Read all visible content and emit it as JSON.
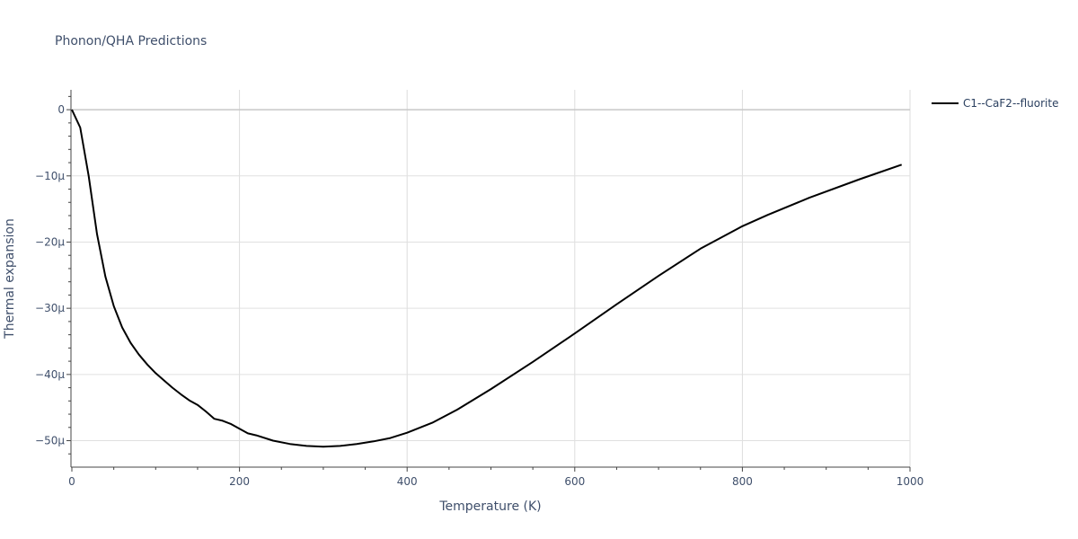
{
  "chart_data": {
    "type": "line",
    "title": "Phonon/QHA Predictions",
    "xlabel": "Temperature (K)",
    "ylabel": "Thermal expansion",
    "xlim": [
      0,
      1000
    ],
    "ylim": [
      -54,
      3
    ],
    "x_ticks": [
      0,
      200,
      400,
      600,
      800,
      1000
    ],
    "x_tick_labels": [
      "0",
      "200",
      "400",
      "600",
      "800",
      "1000"
    ],
    "y_ticks": [
      0,
      -10,
      -20,
      -30,
      -40,
      -50
    ],
    "y_tick_labels": [
      "0",
      "−10μ",
      "−20μ",
      "−30μ",
      "−40μ",
      "−50μ"
    ],
    "grid": true,
    "legend_position": "top-right",
    "series": [
      {
        "name": "C1--CaF2--fluorite",
        "color": "#000000",
        "x": [
          0,
          10,
          20,
          30,
          40,
          50,
          60,
          70,
          80,
          90,
          100,
          110,
          120,
          130,
          140,
          150,
          160,
          170,
          180,
          190,
          200,
          210,
          220,
          240,
          260,
          280,
          300,
          320,
          340,
          360,
          380,
          400,
          430,
          460,
          500,
          550,
          600,
          650,
          700,
          750,
          800,
          830,
          880,
          940,
          990
        ],
        "y": [
          0,
          -2.7,
          -10.0,
          -18.8,
          -25.2,
          -29.7,
          -32.9,
          -35.2,
          -37.0,
          -38.5,
          -39.8,
          -40.9,
          -42.0,
          -43.0,
          -43.9,
          -44.6,
          -45.6,
          -46.7,
          -47.0,
          -47.5,
          -48.2,
          -48.9,
          -49.2,
          -50.0,
          -50.5,
          -50.8,
          -50.9,
          -50.8,
          -50.5,
          -50.1,
          -49.6,
          -48.8,
          -47.3,
          -45.3,
          -42.2,
          -38.1,
          -33.8,
          -29.4,
          -25.1,
          -21.0,
          -17.6,
          -15.9,
          -13.3,
          -10.5,
          -8.3
        ]
      }
    ]
  }
}
